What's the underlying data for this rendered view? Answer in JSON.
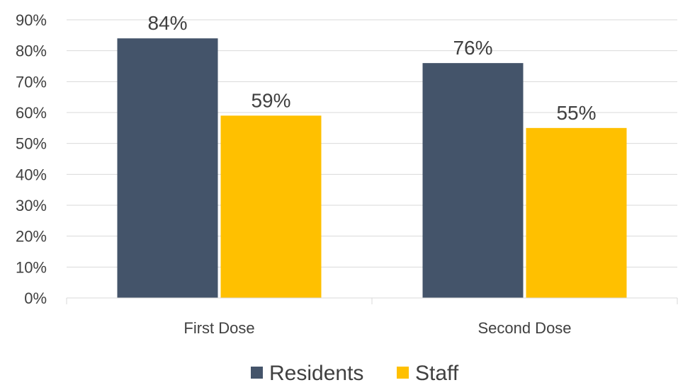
{
  "chart_data": {
    "type": "bar",
    "title": "",
    "xlabel": "",
    "ylabel": "",
    "categories": [
      "First Dose",
      "Second Dose"
    ],
    "series": [
      {
        "name": "Residents",
        "values": [
          84,
          76
        ],
        "labels": [
          "84%",
          "76%"
        ],
        "color": "#44546A"
      },
      {
        "name": "Staff",
        "values": [
          59,
          55
        ],
        "labels": [
          "59%",
          "55%"
        ],
        "color": "#FFC000"
      }
    ],
    "ylim": [
      0,
      90
    ],
    "yticks": [
      0,
      10,
      20,
      30,
      40,
      50,
      60,
      70,
      80,
      90
    ],
    "ytick_labels": [
      "0%",
      "10%",
      "20%",
      "30%",
      "40%",
      "50%",
      "60%",
      "70%",
      "80%",
      "90%"
    ],
    "grid": true,
    "legend_position": "bottom"
  }
}
